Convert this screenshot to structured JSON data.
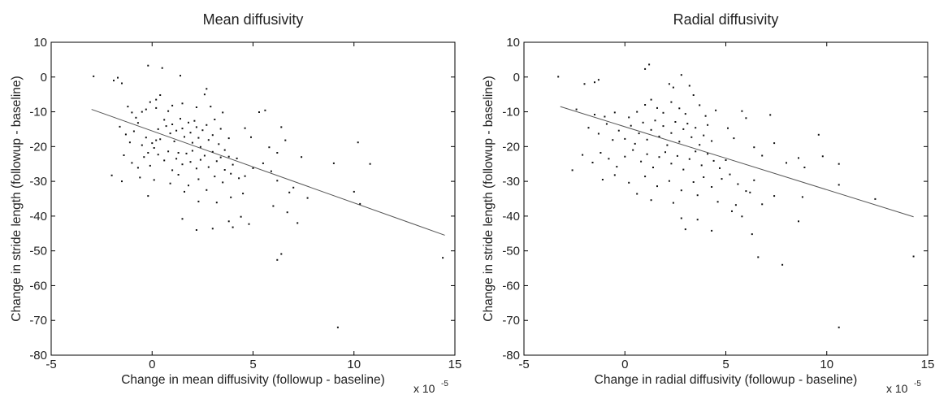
{
  "chart_data": [
    {
      "type": "scatter",
      "title": "Mean diffusivity",
      "xlabel": "Change in mean diffusivity (followup - baseline)",
      "ylabel": "Change in stride length (followup - baseline)",
      "x_multiplier": "x 10",
      "x_multiplier_exp": "-5",
      "xlim": [
        -5,
        15
      ],
      "ylim": [
        -80,
        10
      ],
      "xticks": [
        -5,
        0,
        5,
        10,
        15
      ],
      "yticks": [
        -80,
        -70,
        -60,
        -50,
        -40,
        -30,
        -20,
        -10,
        0,
        10
      ],
      "grid": false,
      "trendline": [
        [
          -3,
          -9.3
        ],
        [
          14.5,
          -45.5
        ]
      ],
      "points": [
        [
          -2.9,
          0.2
        ],
        [
          -1.9,
          -1.0
        ],
        [
          -1.7,
          -0.2
        ],
        [
          -1.5,
          -1.8
        ],
        [
          -0.2,
          3.3
        ],
        [
          0.5,
          2.6
        ],
        [
          1.4,
          0.4
        ],
        [
          -1.2,
          -8.5
        ],
        [
          -1.0,
          -10.2
        ],
        [
          -0.8,
          -11.7
        ],
        [
          -0.5,
          -10.0
        ],
        [
          -0.3,
          -9.3
        ],
        [
          -0.1,
          -7.2
        ],
        [
          0.2,
          -6.5
        ],
        [
          0.4,
          -5.2
        ],
        [
          0.2,
          -8.9
        ],
        [
          0.8,
          -9.8
        ],
        [
          1.0,
          -8.2
        ],
        [
          1.5,
          -7.6
        ],
        [
          2.7,
          -3.4
        ],
        [
          2.6,
          -5.0
        ],
        [
          2.2,
          -8.7
        ],
        [
          2.9,
          -8.5
        ],
        [
          3.5,
          -10.2
        ],
        [
          -1.6,
          -14.3
        ],
        [
          -1.3,
          -16.5
        ],
        [
          -1.1,
          -18.8
        ],
        [
          -0.9,
          -15.6
        ],
        [
          -0.7,
          -13.2
        ],
        [
          -0.5,
          -19.6
        ],
        [
          -0.3,
          -17.4
        ],
        [
          -0.2,
          -21.8
        ],
        [
          0.0,
          -19.0
        ],
        [
          0.1,
          -20.4
        ],
        [
          0.2,
          -18.2
        ],
        [
          0.3,
          -15.0
        ],
        [
          0.4,
          -17.9
        ],
        [
          0.6,
          -12.3
        ],
        [
          0.7,
          -14.1
        ],
        [
          0.9,
          -16.2
        ],
        [
          1.0,
          -13.6
        ],
        [
          1.1,
          -18.5
        ],
        [
          1.2,
          -15.4
        ],
        [
          1.4,
          -12.0
        ],
        [
          1.5,
          -14.8
        ],
        [
          1.6,
          -17.2
        ],
        [
          1.8,
          -13.1
        ],
        [
          1.9,
          -16.0
        ],
        [
          2.0,
          -18.9
        ],
        [
          2.1,
          -12.6
        ],
        [
          2.2,
          -14.4
        ],
        [
          2.3,
          -17.5
        ],
        [
          2.4,
          -20.1
        ],
        [
          2.5,
          -15.3
        ],
        [
          2.7,
          -13.8
        ],
        [
          2.8,
          -18.1
        ],
        [
          3.0,
          -16.7
        ],
        [
          3.1,
          -12.2
        ],
        [
          3.3,
          -19.3
        ],
        [
          3.4,
          -14.9
        ],
        [
          3.6,
          -21.0
        ],
        [
          3.8,
          -17.6
        ],
        [
          -1.4,
          -22.5
        ],
        [
          -1.0,
          -24.7
        ],
        [
          -0.7,
          -26.1
        ],
        [
          -0.4,
          -23.0
        ],
        [
          -0.1,
          -25.5
        ],
        [
          0.3,
          -22.3
        ],
        [
          0.6,
          -24.0
        ],
        [
          0.8,
          -21.4
        ],
        [
          1.0,
          -26.8
        ],
        [
          1.2,
          -23.5
        ],
        [
          1.3,
          -21.8
        ],
        [
          1.5,
          -25.1
        ],
        [
          1.7,
          -22.0
        ],
        [
          1.9,
          -24.4
        ],
        [
          2.0,
          -21.2
        ],
        [
          2.2,
          -26.3
        ],
        [
          2.4,
          -23.8
        ],
        [
          2.6,
          -22.6
        ],
        [
          2.8,
          -25.9
        ],
        [
          3.0,
          -21.5
        ],
        [
          3.2,
          -24.2
        ],
        [
          3.4,
          -23.1
        ],
        [
          3.6,
          -26.7
        ],
        [
          3.8,
          -22.9
        ],
        [
          4.0,
          -25.2
        ],
        [
          4.2,
          -23.4
        ],
        [
          -2.0,
          -28.3
        ],
        [
          -1.5,
          -30.0
        ],
        [
          -0.6,
          -28.9
        ],
        [
          0.1,
          -29.6
        ],
        [
          0.9,
          -30.6
        ],
        [
          1.3,
          -28.1
        ],
        [
          1.8,
          -31.2
        ],
        [
          2.3,
          -29.4
        ],
        [
          2.7,
          -32.5
        ],
        [
          3.1,
          -28.6
        ],
        [
          3.5,
          -30.3
        ],
        [
          3.9,
          -27.8
        ],
        [
          4.3,
          -29.1
        ],
        [
          4.6,
          -28.5
        ],
        [
          -0.2,
          -34.2
        ],
        [
          1.6,
          -33.0
        ],
        [
          2.3,
          -35.8
        ],
        [
          3.2,
          -36.1
        ],
        [
          3.9,
          -34.6
        ],
        [
          4.5,
          -33.5
        ],
        [
          1.5,
          -40.8
        ],
        [
          2.2,
          -44.0
        ],
        [
          3.0,
          -43.6
        ],
        [
          3.8,
          -41.5
        ],
        [
          4.0,
          -43.2
        ],
        [
          4.4,
          -40.2
        ],
        [
          4.8,
          -42.3
        ],
        [
          4.6,
          -14.7
        ],
        [
          4.9,
          -17.3
        ],
        [
          5.3,
          -10.1
        ],
        [
          5.6,
          -9.6
        ],
        [
          5.8,
          -20.2
        ],
        [
          6.2,
          -21.8
        ],
        [
          6.4,
          -14.4
        ],
        [
          6.6,
          -18.2
        ],
        [
          5.0,
          -26.2
        ],
        [
          5.5,
          -24.8
        ],
        [
          5.9,
          -27.1
        ],
        [
          6.2,
          -29.8
        ],
        [
          6.8,
          -33.2
        ],
        [
          7.0,
          -31.8
        ],
        [
          7.4,
          -23.0
        ],
        [
          7.7,
          -34.8
        ],
        [
          6.0,
          -37.1
        ],
        [
          6.7,
          -38.9
        ],
        [
          7.2,
          -42.0
        ],
        [
          6.4,
          -50.9
        ],
        [
          6.2,
          -52.6
        ],
        [
          9.2,
          -72.0
        ],
        [
          10.0,
          -33.0
        ],
        [
          9.0,
          -24.8
        ],
        [
          10.2,
          -18.8
        ],
        [
          10.3,
          -36.5
        ],
        [
          10.8,
          -25.0
        ],
        [
          14.4,
          -52.0
        ]
      ]
    },
    {
      "type": "scatter",
      "title": "Radial diffusivity",
      "xlabel": "Change in radial diffusivity (followup - baseline)",
      "ylabel": "Change in stride length (followup - baseline)",
      "x_multiplier": "x 10",
      "x_multiplier_exp": "-5",
      "xlim": [
        -5,
        15
      ],
      "ylim": [
        -80,
        10
      ],
      "xticks": [
        -5,
        0,
        5,
        10,
        15
      ],
      "yticks": [
        -80,
        -70,
        -60,
        -50,
        -40,
        -30,
        -20,
        -10,
        0,
        10
      ],
      "grid": false,
      "trendline": [
        [
          -3.2,
          -8.5
        ],
        [
          14.3,
          -40.2
        ]
      ],
      "points": [
        [
          -3.3,
          0.1
        ],
        [
          -2.0,
          -2.0
        ],
        [
          -1.5,
          -1.5
        ],
        [
          -1.3,
          -0.8
        ],
        [
          1.0,
          2.3
        ],
        [
          1.2,
          3.6
        ],
        [
          2.8,
          0.6
        ],
        [
          3.2,
          -2.5
        ],
        [
          2.2,
          -2.0
        ],
        [
          2.4,
          -3.0
        ],
        [
          -2.4,
          -9.3
        ],
        [
          -1.5,
          -10.8
        ],
        [
          -1.0,
          -11.4
        ],
        [
          -0.5,
          -10.2
        ],
        [
          0.2,
          -11.6
        ],
        [
          0.6,
          -10.0
        ],
        [
          1.0,
          -8.0
        ],
        [
          1.3,
          -6.5
        ],
        [
          1.6,
          -8.9
        ],
        [
          1.9,
          -10.3
        ],
        [
          2.3,
          -7.2
        ],
        [
          2.7,
          -9.0
        ],
        [
          3.0,
          -10.6
        ],
        [
          3.4,
          -5.2
        ],
        [
          3.7,
          -8.1
        ],
        [
          4.0,
          -11.2
        ],
        [
          4.5,
          -9.6
        ],
        [
          -1.8,
          -14.6
        ],
        [
          -1.3,
          -16.3
        ],
        [
          -0.9,
          -13.5
        ],
        [
          -0.6,
          -18.1
        ],
        [
          -0.3,
          -15.4
        ],
        [
          0.0,
          -17.8
        ],
        [
          0.3,
          -14.0
        ],
        [
          0.5,
          -19.2
        ],
        [
          0.7,
          -16.2
        ],
        [
          0.9,
          -13.1
        ],
        [
          1.1,
          -18.0
        ],
        [
          1.3,
          -15.2
        ],
        [
          1.5,
          -12.5
        ],
        [
          1.7,
          -17.1
        ],
        [
          1.9,
          -14.1
        ],
        [
          2.1,
          -19.6
        ],
        [
          2.3,
          -16.1
        ],
        [
          2.5,
          -12.9
        ],
        [
          2.7,
          -18.6
        ],
        [
          2.9,
          -15.0
        ],
        [
          3.1,
          -13.4
        ],
        [
          3.3,
          -17.3
        ],
        [
          3.5,
          -14.6
        ],
        [
          3.7,
          -19.5
        ],
        [
          3.9,
          -16.8
        ],
        [
          4.1,
          -13.8
        ],
        [
          4.3,
          -18.4
        ],
        [
          -2.1,
          -22.4
        ],
        [
          -1.6,
          -24.6
        ],
        [
          -1.2,
          -21.8
        ],
        [
          -0.8,
          -23.5
        ],
        [
          -0.4,
          -25.8
        ],
        [
          0.0,
          -22.9
        ],
        [
          0.4,
          -21.0
        ],
        [
          0.8,
          -24.3
        ],
        [
          1.1,
          -22.2
        ],
        [
          1.4,
          -26.0
        ],
        [
          1.7,
          -23.0
        ],
        [
          2.0,
          -21.6
        ],
        [
          2.3,
          -24.9
        ],
        [
          2.6,
          -22.7
        ],
        [
          2.9,
          -26.6
        ],
        [
          3.2,
          -23.6
        ],
        [
          3.5,
          -21.4
        ],
        [
          3.8,
          -25.4
        ],
        [
          4.1,
          -22.1
        ],
        [
          4.4,
          -24.1
        ],
        [
          4.7,
          -26.2
        ],
        [
          5.0,
          -23.9
        ],
        [
          -2.6,
          -26.8
        ],
        [
          -1.1,
          -29.5
        ],
        [
          -0.5,
          -28.2
        ],
        [
          0.2,
          -30.4
        ],
        [
          1.0,
          -28.6
        ],
        [
          1.6,
          -31.4
        ],
        [
          2.2,
          -29.9
        ],
        [
          2.8,
          -32.6
        ],
        [
          3.4,
          -30.2
        ],
        [
          3.9,
          -28.8
        ],
        [
          4.3,
          -31.6
        ],
        [
          4.8,
          -29.3
        ],
        [
          5.2,
          -28.0
        ],
        [
          5.6,
          -30.8
        ],
        [
          6.0,
          -32.8
        ],
        [
          6.4,
          -29.7
        ],
        [
          0.6,
          -33.6
        ],
        [
          1.3,
          -35.4
        ],
        [
          2.4,
          -36.2
        ],
        [
          3.6,
          -34.0
        ],
        [
          4.6,
          -35.9
        ],
        [
          5.5,
          -36.8
        ],
        [
          6.2,
          -33.2
        ],
        [
          6.8,
          -36.6
        ],
        [
          7.4,
          -34.2
        ],
        [
          2.8,
          -40.6
        ],
        [
          3.0,
          -43.8
        ],
        [
          3.6,
          -41.0
        ],
        [
          4.3,
          -44.2
        ],
        [
          5.3,
          -38.6
        ],
        [
          5.8,
          -40.1
        ],
        [
          6.3,
          -45.2
        ],
        [
          8.8,
          -34.5
        ],
        [
          5.1,
          -14.7
        ],
        [
          5.4,
          -17.6
        ],
        [
          5.8,
          -9.8
        ],
        [
          6.0,
          -11.8
        ],
        [
          6.4,
          -20.2
        ],
        [
          6.8,
          -22.6
        ],
        [
          7.2,
          -10.9
        ],
        [
          7.4,
          -19.0
        ],
        [
          8.0,
          -24.7
        ],
        [
          8.6,
          -23.3
        ],
        [
          8.9,
          -26.0
        ],
        [
          9.6,
          -16.6
        ],
        [
          9.8,
          -22.8
        ],
        [
          10.6,
          -25.0
        ],
        [
          10.6,
          -31.0
        ],
        [
          12.4,
          -35.1
        ],
        [
          6.6,
          -51.8
        ],
        [
          7.8,
          -54.0
        ],
        [
          8.6,
          -41.5
        ],
        [
          10.6,
          -72.0
        ],
        [
          14.3,
          -51.6
        ]
      ]
    }
  ]
}
